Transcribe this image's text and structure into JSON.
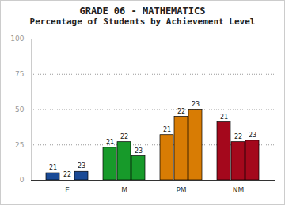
{
  "chart_data": {
    "type": "bar",
    "title": "GRADE 06 - MATHEMATICS",
    "subtitle": "Percentage of Students by Achievement Level",
    "categories": [
      "E",
      "M",
      "PM",
      "NM"
    ],
    "series": [
      {
        "name": "21",
        "values": [
          5,
          23,
          32,
          41
        ],
        "colors": [
          "#1a4a96",
          "#179a2a",
          "#d87c04",
          "#a4081c"
        ]
      },
      {
        "name": "22",
        "values": [
          0,
          27,
          45,
          27
        ],
        "colors": [
          "#1a4a96",
          "#179a2a",
          "#d87c04",
          "#a4081c"
        ]
      },
      {
        "name": "23",
        "values": [
          6,
          17,
          50,
          28
        ],
        "colors": [
          "#1a4a96",
          "#179a2a",
          "#d87c04",
          "#a4081c"
        ]
      }
    ],
    "ylim": [
      0,
      100
    ],
    "yticks": [
      0,
      25,
      50,
      75,
      100
    ],
    "grid": true
  }
}
